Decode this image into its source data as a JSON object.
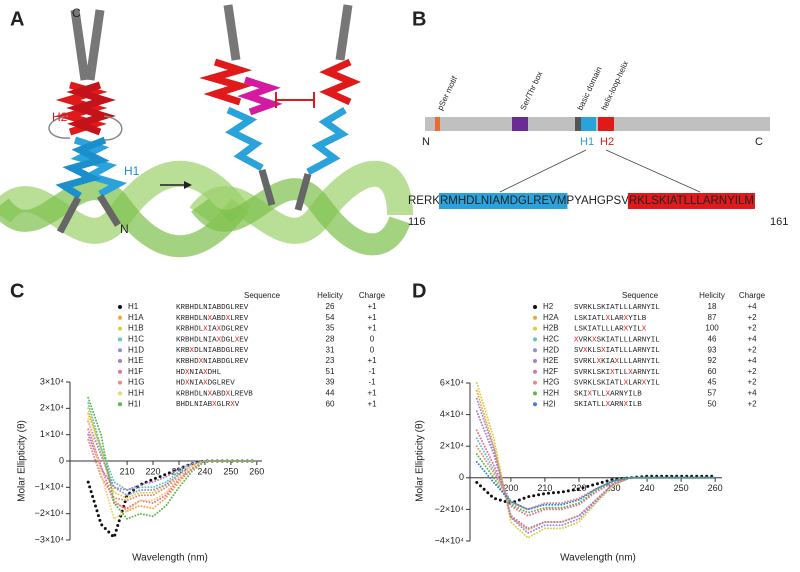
{
  "panel_labels": {
    "a": "A",
    "b": "B",
    "c": "C",
    "d": "D"
  },
  "panel_a": {
    "c_terminus": "C",
    "h2": "H2",
    "h1": "H1",
    "n_terminus": "N"
  },
  "panel_b": {
    "motifs": [
      "pSer motif",
      "Ser/Thr box",
      "basic domain",
      "helix-loop-helix"
    ],
    "n_terminus": "N",
    "c_terminus": "C",
    "h1": "H1",
    "h2": "H2",
    "sequence": [
      "RERK",
      "RMHDLNIAMDGLREVM",
      "PYAHGPSV",
      "RKLSKIATLLLARNYILM"
    ],
    "start": "116",
    "end": "161"
  },
  "chart_data": [
    {
      "type": "line",
      "xlabel": "Wavelength (nm)",
      "ylabel": "Molar Ellipticity (θ)",
      "table_headers": [
        "Sequence",
        "Helicity",
        "Charge"
      ],
      "x": [
        195,
        200,
        205,
        210,
        215,
        220,
        225,
        230,
        235,
        240,
        245,
        250,
        255,
        260
      ],
      "xlim": [
        188,
        262
      ],
      "xticks": [
        210,
        220,
        230,
        240,
        250,
        260
      ],
      "ylim": [
        -30000,
        30000
      ],
      "yticks": [
        {
          "value": 30000,
          "label": "3×10⁴"
        },
        {
          "value": 20000,
          "label": "2×10⁴"
        },
        {
          "value": 10000,
          "label": "1×10⁴"
        },
        0,
        {
          "value": -10000,
          "label": "−1×10⁴"
        },
        {
          "value": -20000,
          "label": "−2×10⁴"
        },
        {
          "value": -30000,
          "label": "−3×10⁴"
        }
      ],
      "series": [
        {
          "name": "H1",
          "color": "#111111",
          "sequence": "KRBHDLNIABDGLREV",
          "helicity": 26,
          "charge": "+1",
          "values": [
            -8000,
            -24000,
            -29000,
            -13000,
            -9000,
            -7000,
            -5000,
            -3000,
            -1000,
            0,
            0,
            0,
            0,
            0
          ]
        },
        {
          "name": "H1A",
          "color": "#f5a43a",
          "sequence": "KRBHDLNXABDXLREV",
          "helicity": 54,
          "charge": "+1",
          "values": [
            18000,
            5000,
            -15000,
            -19000,
            -17000,
            -18000,
            -14000,
            -8000,
            -3000,
            0,
            0,
            0,
            0,
            0
          ]
        },
        {
          "name": "H1B",
          "color": "#d6d040",
          "sequence": "KRBHDLXIAXDGLREV",
          "helicity": 35,
          "charge": "+1",
          "values": [
            20000,
            3000,
            -12000,
            -14000,
            -12000,
            -12000,
            -9000,
            -5000,
            -2000,
            0,
            0,
            0,
            0,
            0
          ]
        },
        {
          "name": "H1C",
          "color": "#5cc6c0",
          "sequence": "KRBHDLNIAXDGLXEV",
          "helicity": 28,
          "charge": "0",
          "values": [
            22000,
            5000,
            -8000,
            -11000,
            -10000,
            -10000,
            -8000,
            -4000,
            -1000,
            0,
            0,
            0,
            0,
            0
          ]
        },
        {
          "name": "H1D",
          "color": "#8f8fd8",
          "sequence": "KRBXDLNIABDGLREV",
          "helicity": 31,
          "charge": "0",
          "values": [
            15000,
            2000,
            -10000,
            -13000,
            -11000,
            -11000,
            -9000,
            -5000,
            -2000,
            0,
            0,
            0,
            0,
            0
          ]
        },
        {
          "name": "H1E",
          "color": "#b07ac8",
          "sequence": "KRBHDXNIABDGLREV",
          "helicity": 23,
          "charge": "+1",
          "values": [
            10000,
            -3000,
            -10000,
            -11000,
            -9000,
            -8000,
            -6000,
            -3000,
            -1000,
            0,
            0,
            0,
            0,
            0
          ]
        },
        {
          "name": "H1F",
          "color": "#e86fa0",
          "sequence": "HDXNIAXDHL",
          "helicity": 51,
          "charge": "-1",
          "values": [
            12000,
            -2000,
            -16000,
            -18000,
            -15000,
            -16000,
            -13000,
            -7000,
            -3000,
            0,
            0,
            0,
            0,
            0
          ]
        },
        {
          "name": "H1G",
          "color": "#ee8a80",
          "sequence": "HDXNIAXDGLREV",
          "helicity": 39,
          "charge": "-1",
          "values": [
            8000,
            -6000,
            -14000,
            -15000,
            -13000,
            -13000,
            -10000,
            -6000,
            -2000,
            0,
            0,
            0,
            0,
            0
          ]
        },
        {
          "name": "H1H",
          "color": "#f2d070",
          "sequence": "KRBHDLNXABDXLREVB",
          "helicity": 44,
          "charge": "+1",
          "values": [
            16000,
            -5000,
            -22000,
            -19000,
            -15000,
            -15000,
            -12000,
            -6000,
            -2000,
            0,
            0,
            0,
            0,
            0
          ]
        },
        {
          "name": "H1I",
          "color": "#5cb84a",
          "sequence": "BHDLNIABXGLRXV",
          "helicity": 60,
          "charge": "+1",
          "values": [
            24000,
            10000,
            -16000,
            -22000,
            -20000,
            -21000,
            -17000,
            -10000,
            -4000,
            0,
            0,
            0,
            0,
            0
          ]
        }
      ]
    },
    {
      "type": "line",
      "xlabel": "Wavelength (nm)",
      "ylabel": "Molar Ellipticity (θ)",
      "table_headers": [
        "Sequence",
        "Helicity",
        "Charge"
      ],
      "x": [
        190,
        195,
        200,
        205,
        210,
        215,
        220,
        225,
        230,
        235,
        240,
        245,
        250,
        255,
        260
      ],
      "xlim": [
        188,
        262
      ],
      "xticks": [
        200,
        210,
        220,
        230,
        240,
        250,
        260
      ],
      "ylim": [
        -40000,
        60000
      ],
      "yticks": [
        {
          "value": 60000,
          "label": "6×10⁴"
        },
        {
          "value": 40000,
          "label": "4×10⁴"
        },
        {
          "value": 20000,
          "label": "2×10⁴"
        },
        0,
        {
          "value": -20000,
          "label": "−2×10⁴"
        },
        {
          "value": -40000,
          "label": "−4×10⁴"
        }
      ],
      "series": [
        {
          "name": "H2",
          "color": "#111111",
          "sequence": "SVRKLSKIATLLLARNYIL",
          "helicity": 18,
          "charge": "+4",
          "values": [
            -3000,
            -13000,
            -16000,
            -12000,
            -10000,
            -9000,
            -7000,
            -4000,
            -1000,
            0,
            1000,
            1000,
            1000,
            1000,
            1000
          ]
        },
        {
          "name": "H2A",
          "color": "#f5a43a",
          "sequence": "LSKIATLXLARXYILB",
          "helicity": 87,
          "charge": "+2",
          "values": [
            55000,
            20000,
            -25000,
            -33000,
            -28000,
            -28000,
            -24000,
            -14000,
            -4000,
            0,
            0,
            0,
            0,
            0,
            0
          ]
        },
        {
          "name": "H2B",
          "color": "#d6d040",
          "sequence": "LSKIATLLLARXYILX",
          "helicity": 100,
          "charge": "+2",
          "values": [
            60000,
            25000,
            -28000,
            -38000,
            -32000,
            -32000,
            -28000,
            -16000,
            -5000,
            0,
            0,
            0,
            0,
            0,
            0
          ]
        },
        {
          "name": "H2C",
          "color": "#5cc6c0",
          "sequence": "XVRKXSKIATLLLARNYIL",
          "helicity": 46,
          "charge": "+4",
          "values": [
            25000,
            5000,
            -15000,
            -20000,
            -16000,
            -16000,
            -13000,
            -7000,
            -2000,
            0,
            0,
            0,
            0,
            0,
            0
          ]
        },
        {
          "name": "H2D",
          "color": "#8f8fd8",
          "sequence": "SVXKLSXIATLLLARNYIL",
          "helicity": 93,
          "charge": "+2",
          "values": [
            50000,
            18000,
            -25000,
            -35000,
            -30000,
            -30000,
            -26000,
            -15000,
            -4000,
            0,
            0,
            0,
            0,
            0,
            0
          ]
        },
        {
          "name": "H2E",
          "color": "#b07ac8",
          "sequence": "SVRKLXKIAXLLLARNYIL",
          "helicity": 92,
          "charge": "+4",
          "values": [
            42000,
            15000,
            -24000,
            -32000,
            -28000,
            -28000,
            -24000,
            -14000,
            -4000,
            0,
            0,
            0,
            0,
            0,
            0
          ]
        },
        {
          "name": "H2F",
          "color": "#e86fa0",
          "sequence": "SVRKLSKIXTLLXARNYIL",
          "helicity": 60,
          "charge": "+2",
          "values": [
            30000,
            8000,
            -18000,
            -24000,
            -20000,
            -20000,
            -17000,
            -9000,
            -3000,
            0,
            0,
            0,
            0,
            0,
            0
          ]
        },
        {
          "name": "H2G",
          "color": "#ee8a80",
          "sequence": "SVRKLSKIATLXLARXYIL",
          "helicity": 45,
          "charge": "+2",
          "values": [
            20000,
            3000,
            -16000,
            -20000,
            -16000,
            -16000,
            -13000,
            -7000,
            -2000,
            0,
            0,
            0,
            0,
            0,
            0
          ]
        },
        {
          "name": "H2H",
          "color": "#5cb84a",
          "sequence": "SKIXTLLXARNYILB",
          "helicity": 57,
          "charge": "+4",
          "values": [
            15000,
            0,
            -17000,
            -22000,
            -19000,
            -19000,
            -16000,
            -8000,
            -2000,
            0,
            0,
            0,
            0,
            0,
            0
          ]
        },
        {
          "name": "H2I",
          "color": "#3b7fd6",
          "sequence": "SKIATLLXARNXILB",
          "helicity": 50,
          "charge": "+2",
          "values": [
            10000,
            -3000,
            -15000,
            -20000,
            -17000,
            -17000,
            -14000,
            -7000,
            -2000,
            0,
            0,
            0,
            0,
            0,
            0
          ]
        }
      ]
    }
  ]
}
